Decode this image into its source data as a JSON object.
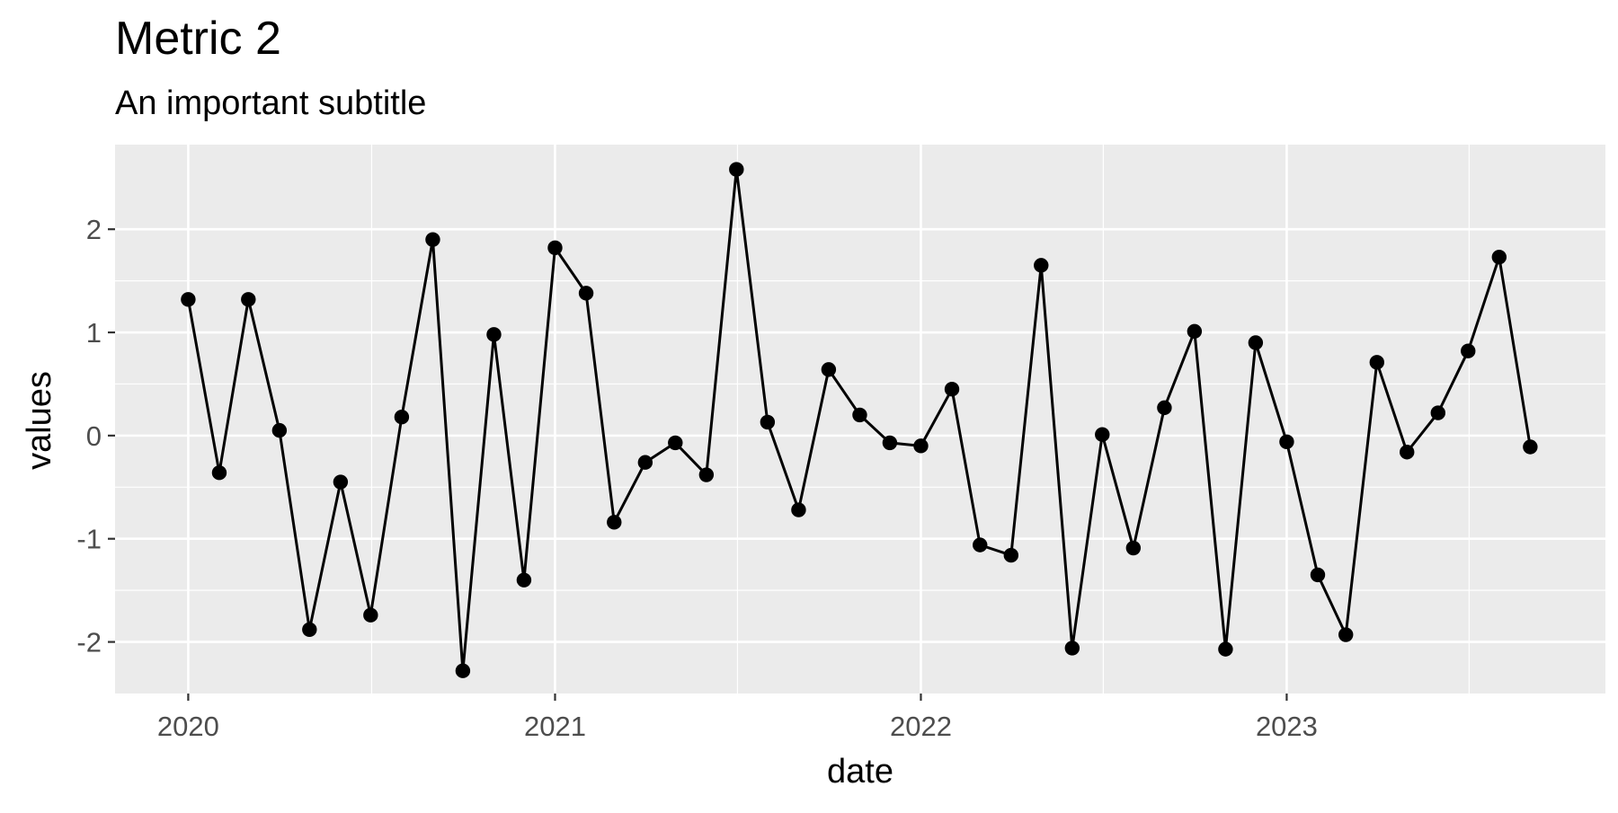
{
  "chart_data": {
    "type": "line",
    "title": "Metric 2",
    "subtitle": "An important subtitle",
    "xlabel": "date",
    "ylabel": "values",
    "x_ticks": [
      {
        "value": "2020-01-01",
        "label": "2020"
      },
      {
        "value": "2021-01-01",
        "label": "2021"
      },
      {
        "value": "2022-01-01",
        "label": "2022"
      },
      {
        "value": "2023-01-01",
        "label": "2023"
      }
    ],
    "y_ticks": [
      -2,
      -1,
      0,
      1,
      2
    ],
    "xlim": [
      "2019-10-20",
      "2023-11-15"
    ],
    "ylim": [
      -2.5,
      2.82
    ],
    "grid": true,
    "colors": {
      "panel": "#ebebeb",
      "grid": "#ffffff",
      "line": "#000000",
      "point": "#000000",
      "tick_text": "#4d4d4d",
      "tick_mark": "#333333"
    },
    "series": [
      {
        "points": [
          {
            "x": "2020-01-01",
            "y": 1.32
          },
          {
            "x": "2020-02-01",
            "y": -0.36
          },
          {
            "x": "2020-03-01",
            "y": 1.32
          },
          {
            "x": "2020-04-01",
            "y": 0.05
          },
          {
            "x": "2020-05-01",
            "y": -1.88
          },
          {
            "x": "2020-06-01",
            "y": -0.45
          },
          {
            "x": "2020-07-01",
            "y": -1.74
          },
          {
            "x": "2020-08-01",
            "y": 0.18
          },
          {
            "x": "2020-09-01",
            "y": 1.9
          },
          {
            "x": "2020-10-01",
            "y": -2.28
          },
          {
            "x": "2020-11-01",
            "y": 0.98
          },
          {
            "x": "2020-12-01",
            "y": -1.4
          },
          {
            "x": "2021-01-01",
            "y": 1.82
          },
          {
            "x": "2021-02-01",
            "y": 1.38
          },
          {
            "x": "2021-03-01",
            "y": -0.84
          },
          {
            "x": "2021-04-01",
            "y": -0.26
          },
          {
            "x": "2021-05-01",
            "y": -0.07
          },
          {
            "x": "2021-06-01",
            "y": -0.38
          },
          {
            "x": "2021-07-01",
            "y": 2.58
          },
          {
            "x": "2021-08-01",
            "y": 0.13
          },
          {
            "x": "2021-09-01",
            "y": -0.72
          },
          {
            "x": "2021-10-01",
            "y": 0.64
          },
          {
            "x": "2021-11-01",
            "y": 0.2
          },
          {
            "x": "2021-12-01",
            "y": -0.07
          },
          {
            "x": "2022-01-01",
            "y": -0.1
          },
          {
            "x": "2022-02-01",
            "y": 0.45
          },
          {
            "x": "2022-03-01",
            "y": -1.06
          },
          {
            "x": "2022-04-01",
            "y": -1.16
          },
          {
            "x": "2022-05-01",
            "y": 1.65
          },
          {
            "x": "2022-06-01",
            "y": -2.06
          },
          {
            "x": "2022-07-01",
            "y": 0.01
          },
          {
            "x": "2022-08-01",
            "y": -1.09
          },
          {
            "x": "2022-09-01",
            "y": 0.27
          },
          {
            "x": "2022-10-01",
            "y": 1.01
          },
          {
            "x": "2022-11-01",
            "y": -2.07
          },
          {
            "x": "2022-12-01",
            "y": 0.9
          },
          {
            "x": "2023-01-01",
            "y": -0.06
          },
          {
            "x": "2023-02-01",
            "y": -1.35
          },
          {
            "x": "2023-03-01",
            "y": -1.93
          },
          {
            "x": "2023-04-01",
            "y": 0.71
          },
          {
            "x": "2023-05-01",
            "y": -0.16
          },
          {
            "x": "2023-06-01",
            "y": 0.22
          },
          {
            "x": "2023-07-01",
            "y": 0.82
          },
          {
            "x": "2023-08-01",
            "y": 1.73
          },
          {
            "x": "2023-09-01",
            "y": -0.11
          }
        ]
      }
    ]
  }
}
